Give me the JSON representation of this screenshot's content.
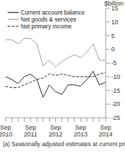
{
  "chart_data": {
    "type": "line",
    "y_label": "$billion",
    "annotations": [
      "(a) Seasonally adjusted estimates at current prices."
    ],
    "categories": [
      "Sep 2010",
      null,
      null,
      null,
      "Sep 2011",
      null,
      null,
      null,
      "Sep 2012",
      null,
      null,
      null,
      "Sep 2013",
      null,
      null,
      null,
      "Sep 2014"
    ],
    "series": [
      {
        "name": "Current account balance",
        "color": "#1a1a1a",
        "line_style": "solid",
        "values": [
          -10,
          -11,
          -12.5,
          -10,
          -9,
          -11,
          -17.5,
          -13,
          -15.5,
          -16.5,
          -13,
          -13,
          -13.5,
          -11,
          -8,
          -13,
          -12
        ]
      },
      {
        "name": "Net goods & services",
        "color": "#9a9a9a",
        "line_style": "solid",
        "values": [
          3.5,
          3.5,
          2,
          4,
          4,
          2,
          -6,
          -4,
          -6.5,
          -4.5,
          -3,
          -2,
          -3,
          -1,
          2,
          -4,
          -4
        ]
      },
      {
        "name": "Net primary income",
        "color": "#1a1a1a",
        "line_style": "dashed",
        "values": [
          -13.5,
          -14,
          -14,
          -13,
          -12,
          -11,
          -10.5,
          -9,
          -9.5,
          -9,
          -9.5,
          -10,
          -10,
          -10,
          -10,
          -9,
          -8.5
        ]
      }
    ],
    "ylim": [
      -25,
      15
    ],
    "yticks": [
      -25,
      -20,
      -15,
      -10,
      -5,
      0,
      5,
      10,
      15
    ],
    "grid": false,
    "legend": "upper left"
  }
}
